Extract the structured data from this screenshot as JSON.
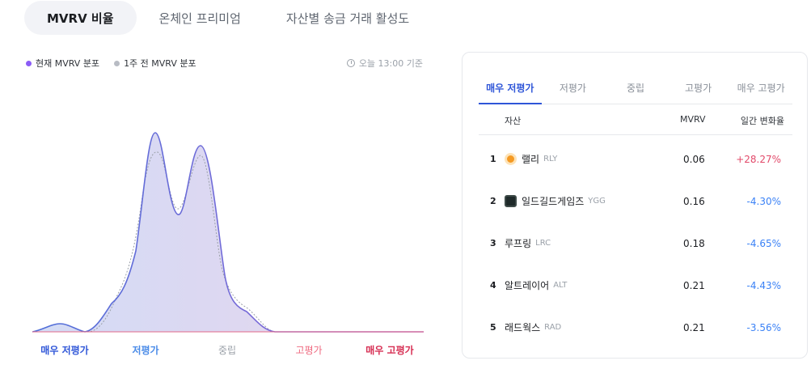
{
  "tabs": [
    {
      "label": "MVRV 비율"
    },
    {
      "label": "온체인 프리미엄"
    },
    {
      "label": "자산별 송금 거래 활성도"
    }
  ],
  "legend": {
    "current": "현재 MVRV 분포",
    "previous": "1주 전 MVRV 분포",
    "timestamp": "오늘 13:00 기준"
  },
  "colors": {
    "current_dot": "#8b5cf6",
    "previous_dot": "#b8bcc4",
    "accent": "#2f56d8",
    "up": "#e24a6a",
    "down": "#3b82f6"
  },
  "categories": [
    {
      "label": "매우 저평가",
      "color": "#2f56d8"
    },
    {
      "label": "저평가",
      "color": "#4a8be8"
    },
    {
      "label": "중립",
      "color": "#9aa0a8"
    },
    {
      "label": "고평가",
      "color": "#ef6a80"
    },
    {
      "label": "매우 고평가",
      "color": "#d62d52"
    }
  ],
  "panel": {
    "tabs": [
      "매우 저평가",
      "저평가",
      "중립",
      "고평가",
      "매우 고평가"
    ],
    "headers": {
      "asset": "자산",
      "mvrv": "MVRV",
      "change": "일간 변화율"
    },
    "rows": [
      {
        "rank": "1",
        "name": "랠리",
        "symbol": "RLY",
        "mvrv": "0.06",
        "change": "+28.27%",
        "dir": "up",
        "icon": "rally-coin-icon",
        "icon_color": "#f59a23"
      },
      {
        "rank": "2",
        "name": "일드길드게임즈",
        "symbol": "YGG",
        "mvrv": "0.16",
        "change": "-4.30%",
        "dir": "down",
        "icon": "ygg-coin-icon",
        "icon_color": "#1f2a2a"
      },
      {
        "rank": "3",
        "name": "루프링",
        "symbol": "LRC",
        "mvrv": "0.18",
        "change": "-4.65%",
        "dir": "down",
        "icon": "",
        "icon_color": ""
      },
      {
        "rank": "4",
        "name": "알트레이어",
        "symbol": "ALT",
        "mvrv": "0.21",
        "change": "-4.43%",
        "dir": "down",
        "icon": "",
        "icon_color": ""
      },
      {
        "rank": "5",
        "name": "래드웍스",
        "symbol": "RAD",
        "mvrv": "0.21",
        "change": "-3.56%",
        "dir": "down",
        "icon": "",
        "icon_color": ""
      }
    ]
  }
}
